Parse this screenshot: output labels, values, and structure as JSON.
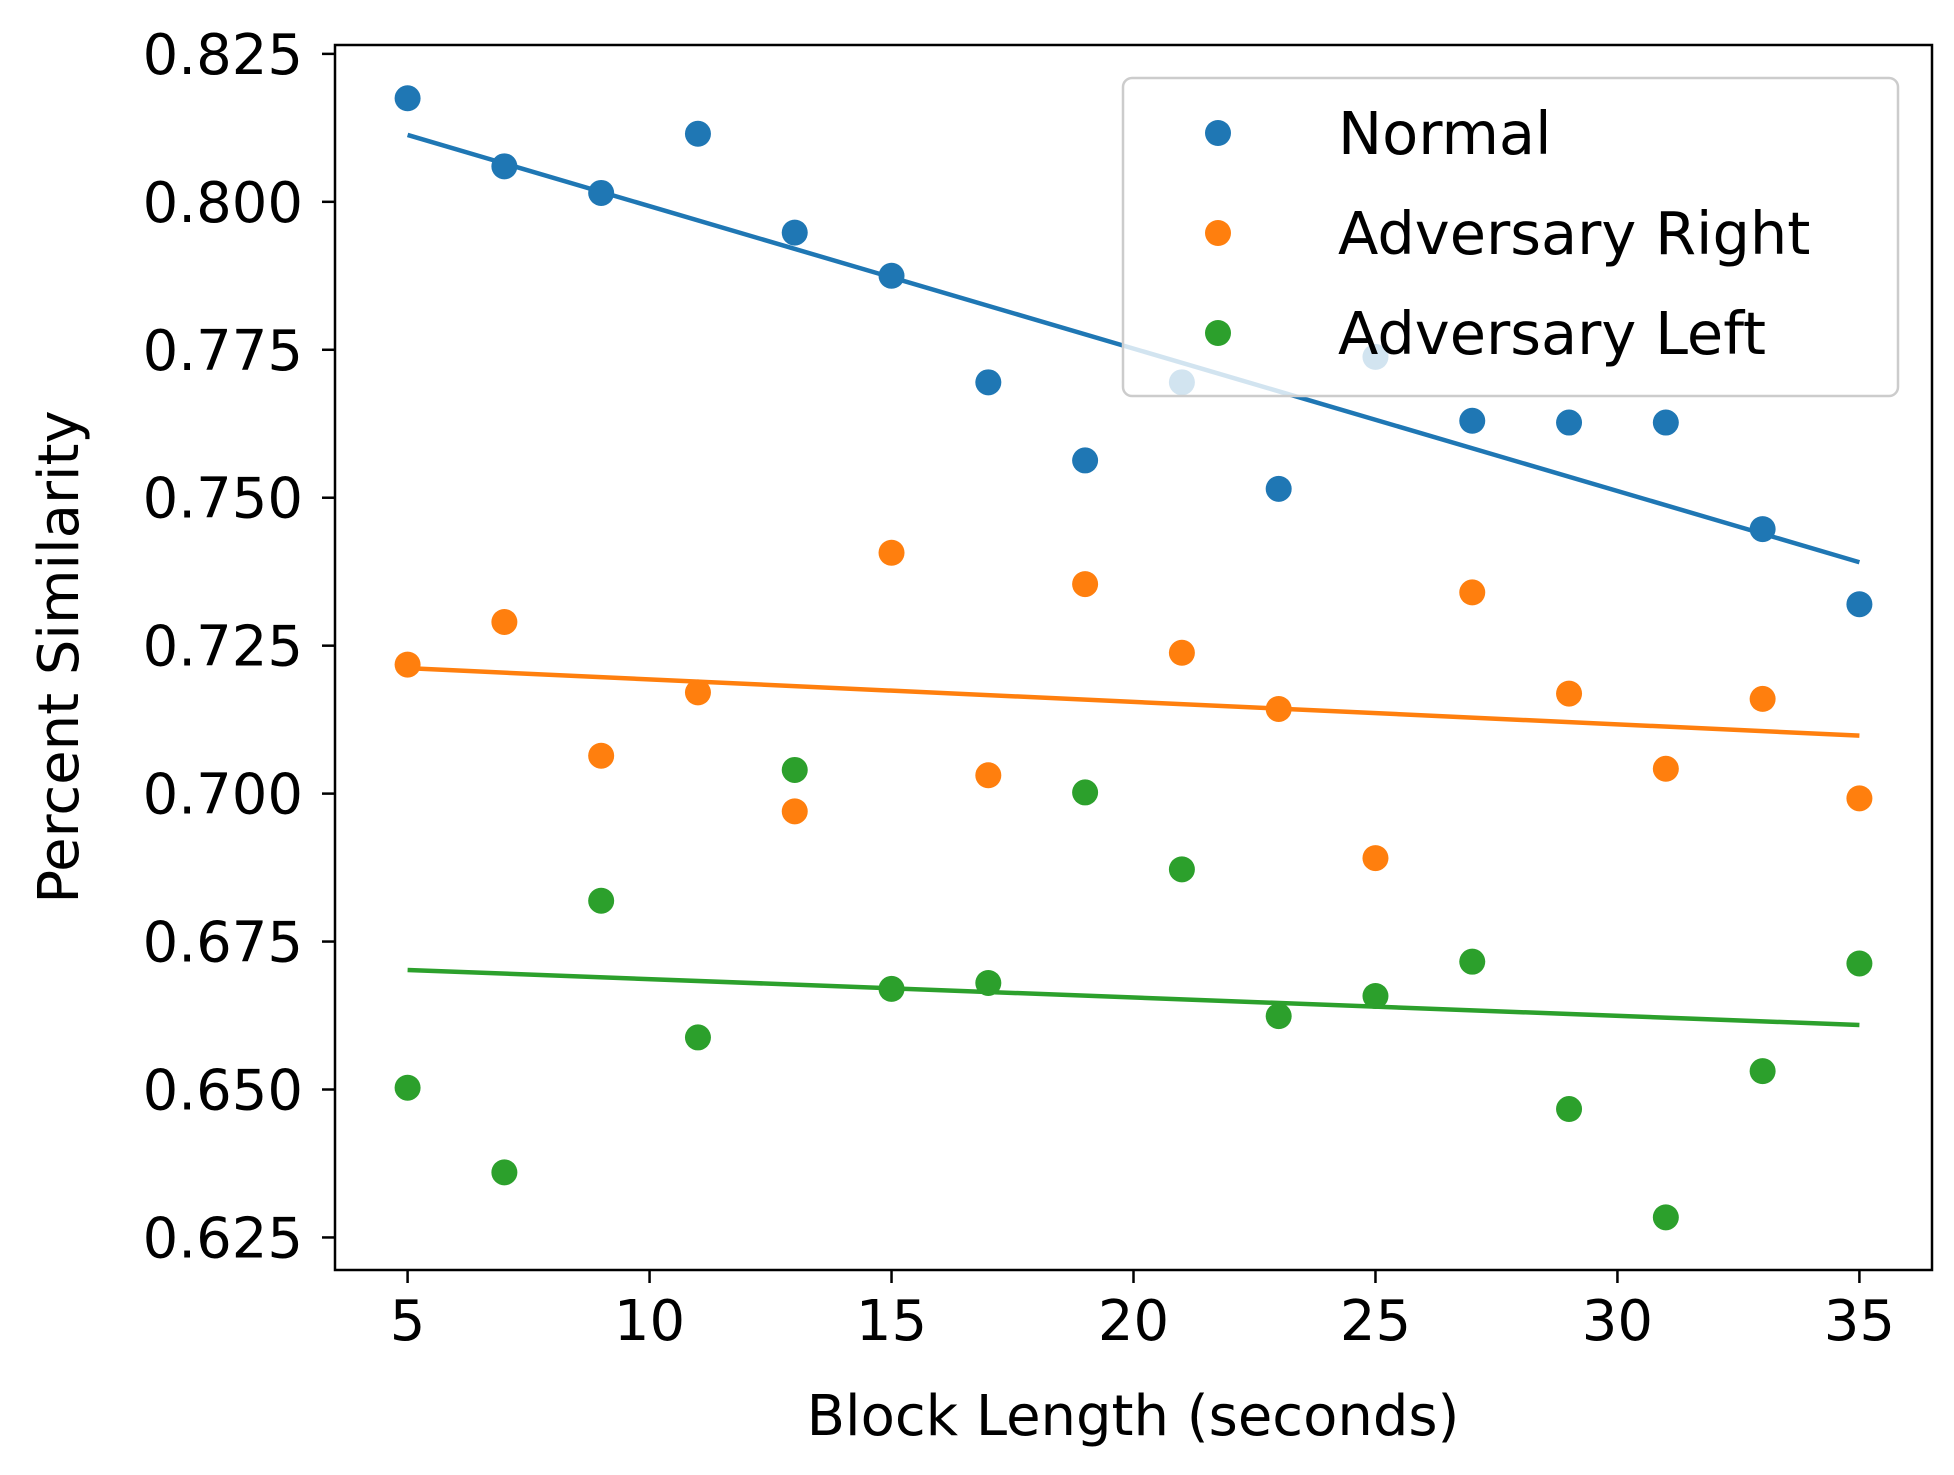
{
  "chart_data": {
    "type": "scatter",
    "title": "",
    "xlabel": "Block Length (seconds)",
    "ylabel": "Percent Similarity",
    "xlim": [
      3.5,
      36.5
    ],
    "ylim": [
      0.6195,
      0.8265
    ],
    "xticks": [
      5,
      10,
      15,
      20,
      25,
      30,
      35
    ],
    "xtick_labels": [
      "5",
      "10",
      "15",
      "20",
      "25",
      "30",
      "35"
    ],
    "yticks": [
      0.625,
      0.65,
      0.675,
      0.7,
      0.725,
      0.75,
      0.775,
      0.8,
      0.825
    ],
    "ytick_labels": [
      "0.625",
      "0.650",
      "0.675",
      "0.700",
      "0.725",
      "0.750",
      "0.775",
      "0.800",
      "0.825"
    ],
    "grid": false,
    "legend_position": "top-right",
    "series": [
      {
        "name": "Normal",
        "color": "#1f77b4",
        "x": [
          5,
          7,
          9,
          11,
          13,
          15,
          17,
          19,
          21,
          23,
          25,
          27,
          29,
          31,
          33,
          35
        ],
        "y": [
          0.8175,
          0.806,
          0.8015,
          0.8115,
          0.7948,
          0.7875,
          0.7695,
          0.7563,
          0.7695,
          0.7515,
          0.7738,
          0.763,
          0.7627,
          0.7627,
          0.7447,
          0.732
        ],
        "trend": {
          "x": [
            5,
            35
          ],
          "y": [
            0.8113,
            0.7391
          ]
        }
      },
      {
        "name": "Adversary Right",
        "color": "#ff7f0e",
        "x": [
          5,
          7,
          9,
          11,
          13,
          15,
          17,
          19,
          21,
          23,
          25,
          27,
          29,
          31,
          33,
          35
        ],
        "y": [
          0.7218,
          0.729,
          0.7064,
          0.7171,
          0.697,
          0.7407,
          0.7031,
          0.7354,
          0.7238,
          0.7143,
          0.6891,
          0.734,
          0.7169,
          0.7042,
          0.716,
          0.6992
        ],
        "trend": {
          "x": [
            5,
            35
          ],
          "y": [
            0.7212,
            0.7098
          ]
        }
      },
      {
        "name": "Adversary Left",
        "color": "#2ca02c",
        "x": [
          5,
          7,
          9,
          11,
          13,
          15,
          17,
          19,
          21,
          23,
          25,
          27,
          29,
          31,
          33,
          35
        ],
        "y": [
          0.6503,
          0.636,
          0.6819,
          0.6588,
          0.704,
          0.667,
          0.668,
          0.7002,
          0.6872,
          0.6624,
          0.6658,
          0.6716,
          0.6467,
          0.6284,
          0.6531,
          0.6713
        ],
        "trend": {
          "x": [
            5,
            35
          ],
          "y": [
            0.6702,
            0.6609
          ]
        }
      }
    ]
  }
}
